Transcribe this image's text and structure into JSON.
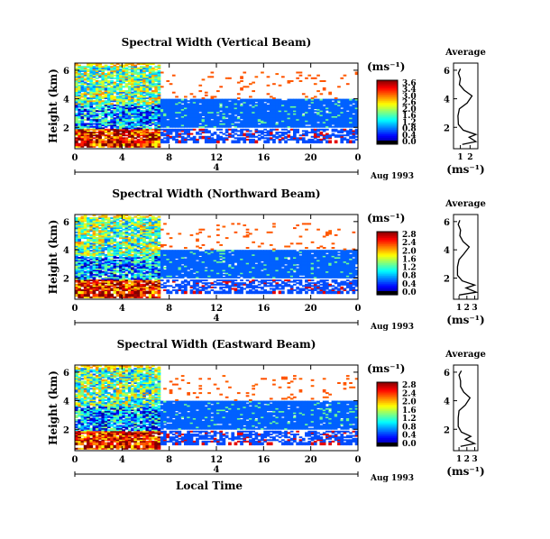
{
  "chart_data": [
    {
      "type": "heatmap",
      "title": "Spectral Width (Vertical Beam)",
      "ylabel": "Height (km)",
      "xlabel": "",
      "xlim": [
        0,
        24
      ],
      "ylim": [
        0.5,
        6.5
      ],
      "xticks": [
        "0",
        "4",
        "8",
        "12",
        "16",
        "20",
        "0"
      ],
      "yticks": [
        "2",
        "4",
        "6"
      ],
      "date_label": "Aug 1993",
      "day_label": "4",
      "colorbar": {
        "unit": "(ms⁻¹)",
        "ticks": [
          "3.6",
          "3.4",
          "3.0",
          "2.6",
          "2.0",
          "1.6",
          "1.2",
          "0.8",
          "0.4",
          "0.0"
        ]
      },
      "profile": {
        "title": "Average",
        "xlabel": "(ms⁻¹)",
        "xticks": [
          "1",
          "2"
        ],
        "xlim": [
          0.3,
          2.8
        ],
        "points": [
          [
            1.2,
            0.8
          ],
          [
            2.6,
            1.0
          ],
          [
            1.9,
            1.3
          ],
          [
            2.6,
            1.5
          ],
          [
            1.3,
            1.8
          ],
          [
            0.8,
            2.2
          ],
          [
            0.75,
            2.8
          ],
          [
            0.9,
            3.3
          ],
          [
            1.7,
            3.7
          ],
          [
            2.2,
            4.2
          ],
          [
            1.4,
            4.6
          ],
          [
            0.9,
            5.0
          ],
          [
            1.0,
            5.4
          ],
          [
            0.8,
            5.8
          ],
          [
            1.0,
            6.1
          ]
        ]
      }
    },
    {
      "type": "heatmap",
      "title": "Spectral Width (Northward Beam)",
      "ylabel": "Height (km)",
      "xlabel": "",
      "xlim": [
        0,
        24
      ],
      "ylim": [
        0.5,
        6.5
      ],
      "xticks": [
        "0",
        "4",
        "8",
        "12",
        "16",
        "20",
        "0"
      ],
      "yticks": [
        "2",
        "4",
        "6"
      ],
      "date_label": "Aug 1993",
      "day_label": "4",
      "colorbar": {
        "unit": "(ms⁻¹)",
        "ticks": [
          "2.8",
          "2.4",
          "2.0",
          "1.6",
          "1.2",
          "0.8",
          "0.4",
          "0.0"
        ]
      },
      "profile": {
        "title": "Average",
        "xlabel": "(ms⁻¹)",
        "xticks": [
          "1",
          "2",
          "3"
        ],
        "xlim": [
          0.3,
          3.4
        ],
        "points": [
          [
            1.0,
            0.8
          ],
          [
            3.2,
            1.0
          ],
          [
            1.9,
            1.3
          ],
          [
            3.0,
            1.5
          ],
          [
            1.4,
            1.8
          ],
          [
            0.8,
            2.2
          ],
          [
            0.8,
            2.8
          ],
          [
            1.0,
            3.3
          ],
          [
            1.6,
            3.7
          ],
          [
            2.3,
            4.2
          ],
          [
            1.5,
            4.6
          ],
          [
            1.1,
            5.0
          ],
          [
            1.2,
            5.4
          ],
          [
            0.9,
            5.8
          ],
          [
            1.1,
            6.1
          ]
        ]
      }
    },
    {
      "type": "heatmap",
      "title": "Spectral Width (Eastward Beam)",
      "ylabel": "Height (km)",
      "xlabel": "Local Time",
      "xlim": [
        0,
        24
      ],
      "ylim": [
        0.5,
        6.5
      ],
      "xticks": [
        "0",
        "4",
        "8",
        "12",
        "16",
        "20",
        "0"
      ],
      "yticks": [
        "2",
        "4",
        "6"
      ],
      "date_label": "Aug 1993",
      "day_label": "4",
      "colorbar": {
        "unit": "(ms⁻¹)",
        "ticks": [
          "2.8",
          "2.4",
          "2.0",
          "1.6",
          "1.2",
          "0.8",
          "0.4",
          "0.0"
        ]
      },
      "profile": {
        "title": "Average",
        "xlabel": "(ms⁻¹)",
        "xticks": [
          "1",
          "2",
          "3"
        ],
        "xlim": [
          0.3,
          3.4
        ],
        "points": [
          [
            1.2,
            0.8
          ],
          [
            3.0,
            1.0
          ],
          [
            1.8,
            1.3
          ],
          [
            2.5,
            1.5
          ],
          [
            1.3,
            1.8
          ],
          [
            0.9,
            2.2
          ],
          [
            0.9,
            2.8
          ],
          [
            1.0,
            3.3
          ],
          [
            1.8,
            3.7
          ],
          [
            2.4,
            4.2
          ],
          [
            1.6,
            4.6
          ],
          [
            1.2,
            5.0
          ],
          [
            1.2,
            5.4
          ],
          [
            1.0,
            5.8
          ],
          [
            1.3,
            6.1
          ]
        ]
      }
    }
  ]
}
